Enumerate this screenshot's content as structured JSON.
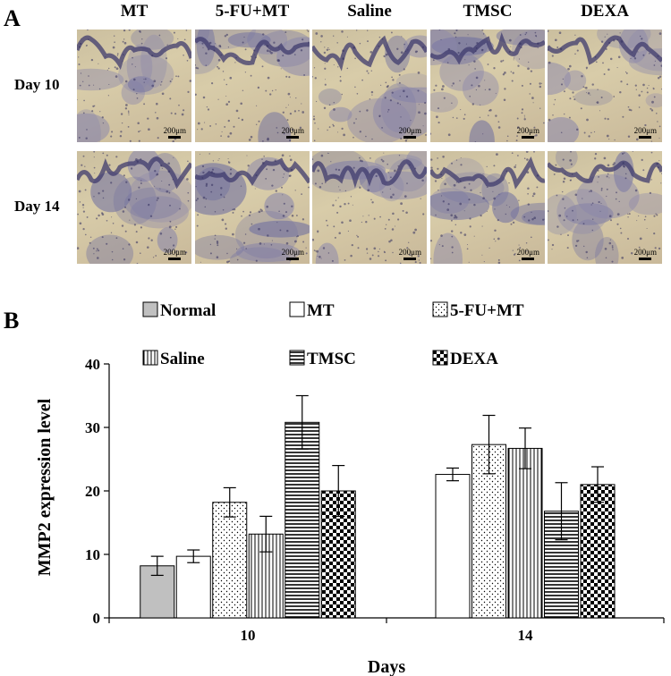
{
  "panel_a": {
    "letter": "A",
    "columns": [
      "MT",
      "5-FU+MT",
      "Saline",
      "TMSC",
      "DEXA"
    ],
    "rows": [
      "Day 10",
      "Day 14"
    ],
    "scale_label": "200μm"
  },
  "panel_b_letter": "B",
  "chart_data": {
    "type": "bar",
    "xlabel": "Days",
    "ylabel": "MMP2 expression level",
    "ylim": [
      0,
      40
    ],
    "yticks": [
      0,
      10,
      20,
      30,
      40
    ],
    "categories": [
      "10",
      "14"
    ],
    "legend_placement": "top",
    "series": [
      {
        "name": "Normal",
        "pattern": "gray",
        "values": [
          8.2,
          null
        ],
        "errors": [
          1.5,
          null
        ]
      },
      {
        "name": "MT",
        "pattern": "white",
        "values": [
          9.7,
          22.6
        ],
        "errors": [
          1.0,
          1.0
        ]
      },
      {
        "name": "5-FU+MT",
        "pattern": "dots",
        "values": [
          18.2,
          27.3
        ],
        "errors": [
          2.3,
          4.6
        ]
      },
      {
        "name": "Saline",
        "pattern": "vlines",
        "values": [
          13.2,
          26.7
        ],
        "errors": [
          2.8,
          3.2
        ]
      },
      {
        "name": "TMSC",
        "pattern": "hlines",
        "values": [
          30.8,
          16.8
        ],
        "errors": [
          4.2,
          4.5
        ]
      },
      {
        "name": "DEXA",
        "pattern": "checker",
        "values": [
          20.0,
          21.0
        ],
        "errors": [
          4.0,
          2.8
        ]
      }
    ],
    "colors": {
      "normal_fill": "#c0c0c0",
      "stroke": "#000000"
    }
  }
}
